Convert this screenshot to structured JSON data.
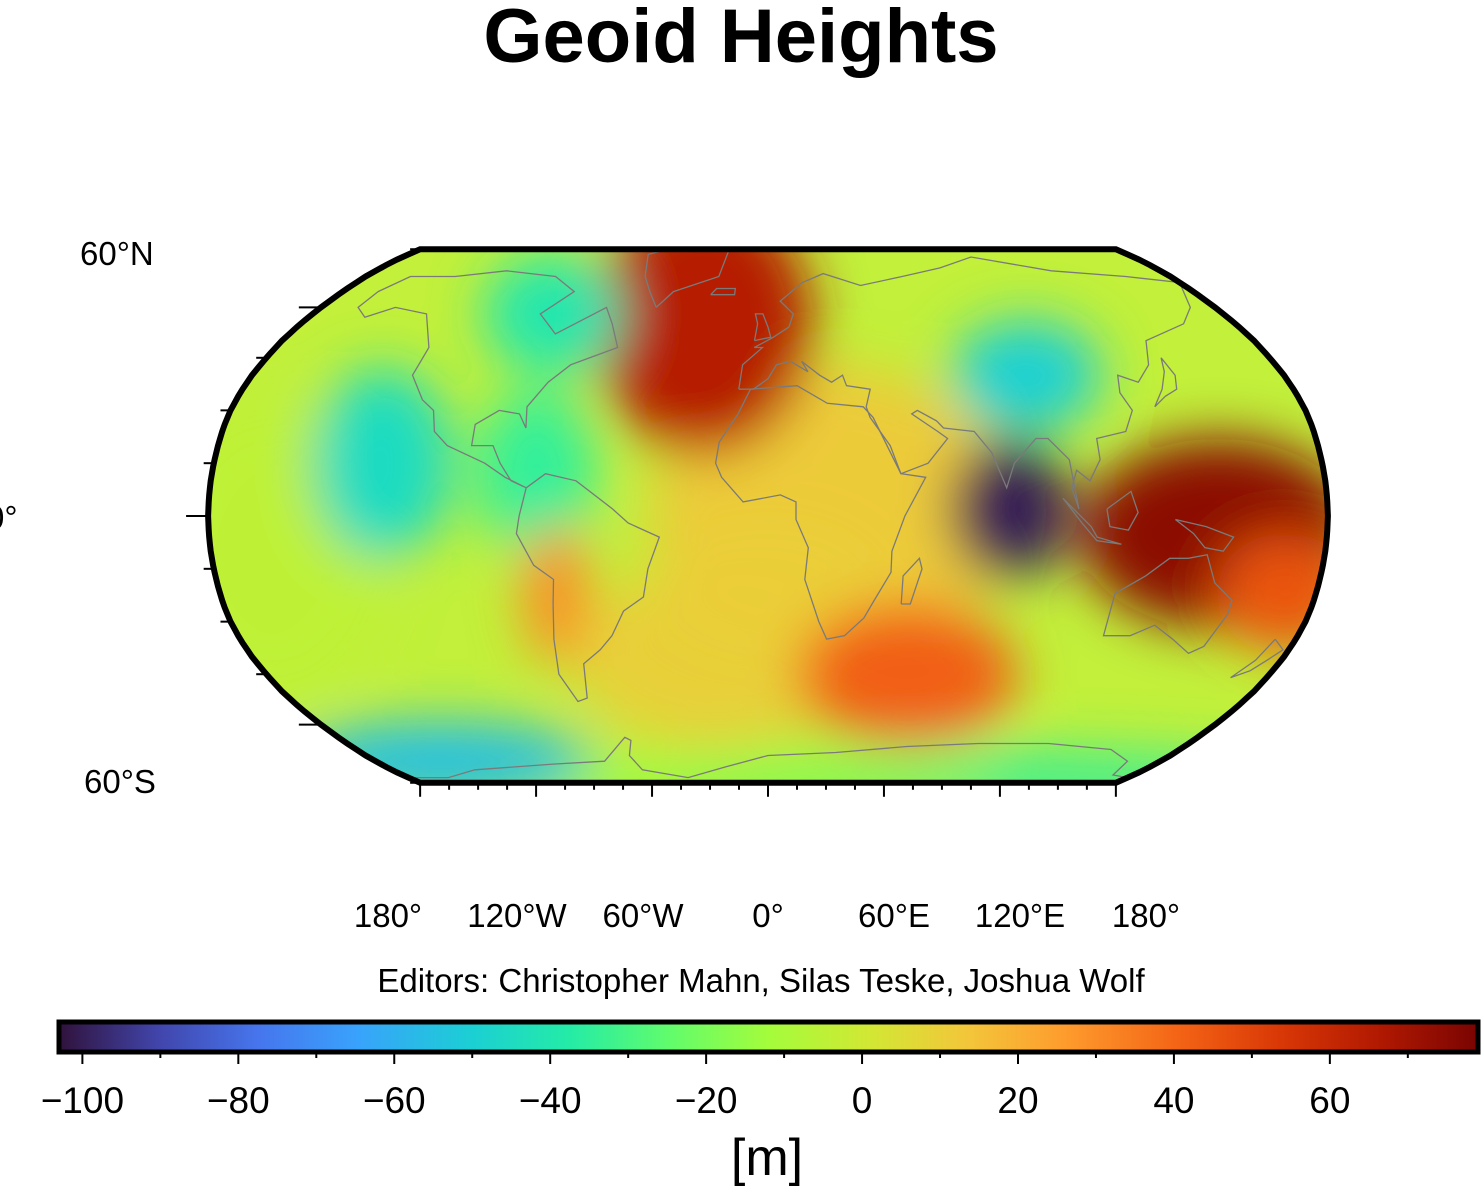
{
  "title": "Geoid Heights",
  "credit": "Editors: Christopher Mahn, Silas Teske, Joshua Wolf",
  "map": {
    "projection": "Robinson",
    "graticule": {
      "latitude_labels": [
        "60°N",
        "0°",
        "60°S"
      ],
      "longitude_labels": [
        "180°",
        "120°W",
        "60°W",
        "0°",
        "60°E",
        "120°E",
        "180°"
      ]
    },
    "coastline_color": "#7a7a7a",
    "frame_color": "#000000"
  },
  "colorbar": {
    "colormap": "turbo",
    "range": [
      -103,
      79
    ],
    "tick_labels": [
      "−100",
      "−80",
      "−60",
      "−40",
      "−20",
      "0",
      "20",
      "40",
      "60"
    ],
    "unit": "[m]"
  },
  "chart_data": {
    "type": "heatmap",
    "title": "Geoid Heights",
    "variable": "geoid height",
    "unit": "m",
    "value_range": [
      -103,
      79
    ],
    "features": [
      {
        "region": "Indian Ocean south of India",
        "lon": 78,
        "lat": 2,
        "value": -100
      },
      {
        "region": "Papua New Guinea",
        "lon": 145,
        "lat": -5,
        "value": 75
      },
      {
        "region": "North Atlantic / Iceland",
        "lon": -25,
        "lat": 55,
        "value": 65
      },
      {
        "region": "Hudson Bay",
        "lon": -85,
        "lat": 58,
        "value": -40
      },
      {
        "region": "East Pacific",
        "lon": -125,
        "lat": 15,
        "value": -45
      },
      {
        "region": "Caribbean",
        "lon": -75,
        "lat": 12,
        "value": -35
      },
      {
        "region": "Southern Indian Ocean ridge",
        "lon": 50,
        "lat": -45,
        "value": 42
      },
      {
        "region": "Central Andes",
        "lon": -70,
        "lat": -22,
        "value": 30
      },
      {
        "region": "Ross Sea",
        "lon": -150,
        "lat": -72,
        "value": -55
      },
      {
        "region": "Central Asia / Tibet",
        "lon": 90,
        "lat": 40,
        "value": -50
      },
      {
        "region": "Southwest Pacific",
        "lon": 170,
        "lat": -22,
        "value": 45
      }
    ]
  }
}
